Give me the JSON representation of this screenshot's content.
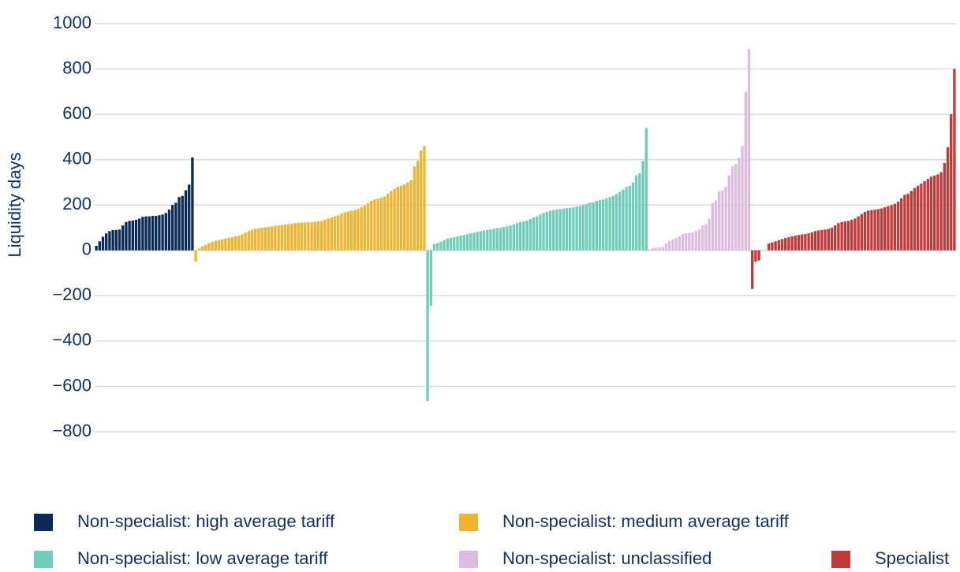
{
  "chart_data": {
    "type": "bar",
    "y_label": "Liquidity days",
    "ylim": [
      -800,
      1000
    ],
    "yticks": [
      {
        "value": -800,
        "label": "−800"
      },
      {
        "value": -600,
        "label": "−600"
      },
      {
        "value": -400,
        "label": "−400"
      },
      {
        "value": -200,
        "label": "−200"
      },
      0,
      200,
      400,
      600,
      800,
      1000
    ],
    "grid": true,
    "series": [
      {
        "name": "Non-specialist: high average tariff",
        "color": "#0b2a57",
        "values": [
          20,
          40,
          60,
          75,
          85,
          90,
          90,
          92,
          110,
          125,
          130,
          132,
          135,
          140,
          148,
          150,
          150,
          152,
          152,
          155,
          158,
          165,
          180,
          200,
          210,
          235,
          240,
          265,
          290,
          410
        ]
      },
      {
        "name": "Non-specialist: medium average tariff",
        "color": "#f0b42f",
        "values": [
          -50,
          8,
          18,
          25,
          32,
          38,
          42,
          45,
          48,
          52,
          55,
          58,
          62,
          65,
          70,
          78,
          85,
          92,
          95,
          97,
          100,
          102,
          104,
          106,
          108,
          110,
          112,
          114,
          116,
          118,
          120,
          121,
          122,
          123,
          124,
          125,
          126,
          128,
          130,
          135,
          140,
          145,
          150,
          155,
          162,
          168,
          172,
          175,
          178,
          182,
          190,
          198,
          208,
          218,
          225,
          228,
          232,
          238,
          250,
          262,
          272,
          280,
          285,
          290,
          300,
          310,
          370,
          395,
          440,
          460
        ]
      },
      {
        "name": "Non-specialist: low average tariff",
        "color": "#6fcdb8",
        "values": [
          -665,
          -245,
          28,
          32,
          38,
          45,
          52,
          55,
          58,
          62,
          65,
          68,
          72,
          75,
          78,
          82,
          85,
          88,
          90,
          92,
          95,
          98,
          100,
          103,
          106,
          110,
          115,
          120,
          125,
          128,
          132,
          138,
          145,
          150,
          158,
          165,
          170,
          175,
          178,
          180,
          182,
          184,
          186,
          188,
          190,
          193,
          196,
          200,
          205,
          210,
          212,
          218,
          222,
          225,
          230,
          235,
          240,
          248,
          258,
          268,
          280,
          285,
          300,
          330,
          340,
          395,
          540
        ]
      },
      {
        "name": "Non-specialist: unclassified",
        "color": "#dcbde0",
        "values": [
          5,
          10,
          12,
          14,
          15,
          30,
          42,
          48,
          55,
          62,
          72,
          75,
          78,
          80,
          85,
          92,
          110,
          115,
          140,
          210,
          220,
          260,
          265,
          280,
          330,
          370,
          380,
          410,
          460,
          700,
          890
        ]
      },
      {
        "name": "Specialist",
        "color": "#c2393a",
        "values": [
          -170,
          -50,
          -45,
          0,
          0,
          30,
          35,
          40,
          45,
          50,
          55,
          58,
          62,
          65,
          68,
          70,
          72,
          75,
          80,
          85,
          88,
          90,
          92,
          95,
          100,
          110,
          120,
          125,
          128,
          130,
          135,
          140,
          150,
          160,
          170,
          175,
          178,
          180,
          182,
          185,
          190,
          195,
          200,
          205,
          215,
          230,
          245,
          250,
          262,
          275,
          285,
          295,
          305,
          315,
          325,
          330,
          335,
          345,
          385,
          455,
          600,
          800
        ]
      }
    ]
  }
}
